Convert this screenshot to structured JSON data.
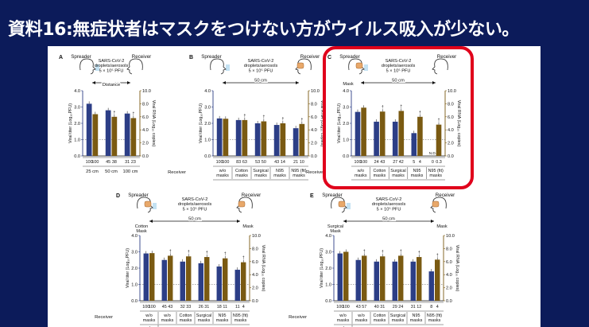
{
  "slide": {
    "title": "資料16:無症状者はマスクをつけない方がウイルス吸入が少ない。",
    "highlight_color": "#e0001b",
    "background_color": "#0c1b5a"
  },
  "colors": {
    "titer_bar": "#2c3e86",
    "rna_bar": "#7a5a12",
    "titer_axis": "#2c3e86",
    "rna_axis": "#7a5a12"
  },
  "common": {
    "virus_lines": [
      "SARS-CoV-2",
      "droplets/aerosols",
      "5 × 10⁵ PFU"
    ],
    "spreader": "Spreader",
    "receiver": "Receiver",
    "ylabel_left": "Viral titer (Log₁₀PFU)",
    "ylabel_right": "Viral RNA (Log₁₀ copies)",
    "yticks_left": [
      "4.0",
      "3.0",
      "2.0",
      "1.0",
      "0.0"
    ],
    "yticks_right": [
      "10.0",
      "8.0",
      "6.0",
      "4.0",
      "2.0",
      "0.0"
    ],
    "receiver_label": "Receiver",
    "spreader_label": "Spreader",
    "mask_label": "Mask",
    "distance_label": "Distance",
    "cm50": "50 cm"
  },
  "panels": [
    {
      "letter": "A",
      "groups": [
        "25 cm",
        "50 cm",
        "100 cm"
      ],
      "counts": [
        [
          "100",
          "100"
        ],
        [
          "45",
          "38"
        ],
        [
          "31",
          "23"
        ]
      ],
      "chart_data": {
        "type": "bar",
        "categories": [
          "25 cm",
          "50 cm",
          "100 cm"
        ],
        "series": [
          {
            "values": [
              3.2,
              2.8,
              2.6
            ]
          },
          {
            "values": [
              6.4,
              6.0,
              5.8
            ]
          }
        ],
        "ylim_left": [
          0,
          4
        ],
        "ylim_right": [
          0,
          10
        ]
      }
    },
    {
      "letter": "B",
      "groups": [
        "w/o\nmasks",
        "Cotton\nmasks",
        "Surgical\nmasks",
        "N95\nmasks",
        "N95 (fit)\nmasks"
      ],
      "counts": [
        [
          "100",
          "100"
        ],
        [
          "83",
          "63"
        ],
        [
          "53",
          "50"
        ],
        [
          "43",
          "14"
        ],
        [
          "21",
          "10"
        ]
      ],
      "chart_data": {
        "type": "bar",
        "categories": [
          "w/o masks",
          "Cotton masks",
          "Surgical masks",
          "N95 masks",
          "N95 (fit) masks"
        ],
        "series": [
          {
            "values": [
              2.3,
              2.2,
              2.0,
              1.9,
              1.7
            ]
          },
          {
            "values": [
              5.7,
              5.5,
              5.3,
              5.0,
              4.9
            ]
          }
        ],
        "ylim_left": [
          0,
          4
        ],
        "ylim_right": [
          0,
          10
        ]
      }
    },
    {
      "letter": "C",
      "groups": [
        "w/o\nmasks",
        "Cotton\nmasks",
        "Surgical\nmasks",
        "N95\nmasks",
        "N95 (fit)\nmasks"
      ],
      "counts": [
        [
          "100",
          "100"
        ],
        [
          "24",
          "43"
        ],
        [
          "27",
          "42"
        ],
        [
          "5",
          "4"
        ],
        [
          "0",
          "0.3"
        ]
      ],
      "nd_label": "N.D.",
      "chart_data": {
        "type": "bar",
        "categories": [
          "w/o masks",
          "Cotton masks",
          "Surgical masks",
          "N95 masks",
          "N95 (fit) masks"
        ],
        "series": [
          {
            "values": [
              2.7,
              2.1,
              2.1,
              1.4,
              0
            ]
          },
          {
            "values": [
              7.4,
              6.8,
              6.9,
              6.0,
              4.8
            ]
          }
        ],
        "ylim_left": [
          0,
          4
        ],
        "ylim_right": [
          0,
          10
        ]
      }
    },
    {
      "letter": "D",
      "spreader_mask": "Cotton\nMask",
      "groups": [
        "w/o\nmasks",
        "Cotton\nmasks",
        "Surgical\nmasks",
        "N95\nmasks",
        "N95 (fit)\nmasks"
      ],
      "counts": [
        [
          "100",
          "100"
        ],
        [
          "45",
          "43"
        ],
        [
          "32",
          "33"
        ],
        [
          "26",
          "31"
        ],
        [
          "18",
          "11"
        ],
        [
          "11",
          "4"
        ]
      ],
      "spreader_row": [
        "w/o\nmasks",
        "Cotton masks"
      ],
      "chart_data": {
        "type": "bar",
        "categories": [
          "w/o masks",
          "w/o masks",
          "Cotton masks",
          "Surgical masks",
          "N95 masks",
          "N95 (fit) masks"
        ],
        "series": [
          {
            "values": [
              2.9,
              2.5,
              2.4,
              2.3,
              2.1,
              1.9
            ]
          },
          {
            "values": [
              7.3,
              6.9,
              6.8,
              6.7,
              6.5,
              5.9
            ]
          }
        ],
        "ylim_left": [
          0,
          4
        ],
        "ylim_right": [
          0,
          10
        ]
      }
    },
    {
      "letter": "E",
      "spreader_mask": "Surgical\nMask",
      "groups": [
        "w/o\nmasks",
        "Cotton\nmasks",
        "Surgical\nmasks",
        "N95\nmasks",
        "N95 (fit)\nmasks"
      ],
      "counts": [
        [
          "100",
          "100"
        ],
        [
          "43",
          "57"
        ],
        [
          "40",
          "31"
        ],
        [
          "29",
          "24"
        ],
        [
          "31",
          "12"
        ],
        [
          "8",
          "4"
        ]
      ],
      "spreader_row": [
        "w/o\nmasks",
        "Surgical masks"
      ],
      "chart_data": {
        "type": "bar",
        "categories": [
          "w/o masks",
          "w/o masks",
          "Cotton masks",
          "Surgical masks",
          "N95 masks",
          "N95 (fit) masks"
        ],
        "series": [
          {
            "values": [
              2.9,
              2.5,
              2.4,
              2.4,
              2.4,
              1.8
            ]
          },
          {
            "values": [
              7.5,
              6.9,
              6.8,
              6.9,
              6.7,
              6.3
            ]
          }
        ],
        "ylim_left": [
          0,
          4
        ],
        "ylim_right": [
          0,
          10
        ]
      }
    }
  ]
}
